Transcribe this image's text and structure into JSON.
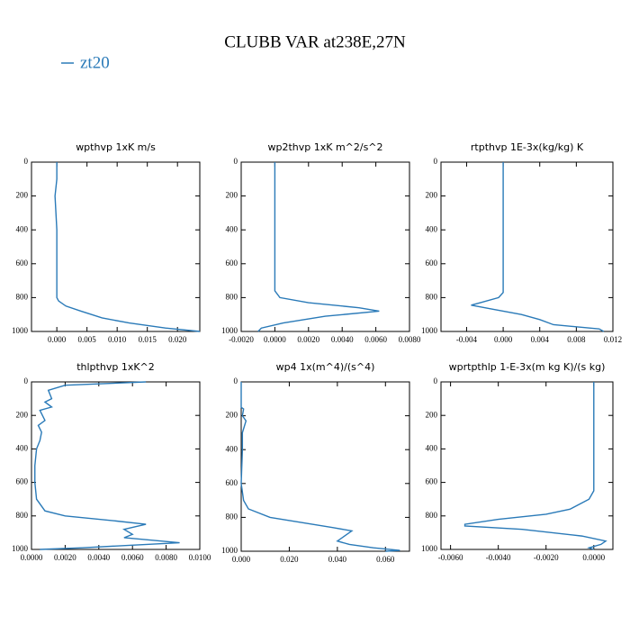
{
  "title": "CLUBB VAR at238E,27N",
  "legend": {
    "name": "zt20",
    "color": "#2a7ab8"
  },
  "chart_data": [
    {
      "type": "line",
      "title": "wpthvp   1xK m/s",
      "y": [
        0,
        100,
        200,
        400,
        600,
        800,
        820,
        850,
        880,
        920,
        950,
        980,
        1000
      ],
      "series": [
        {
          "color": "#2a7ab8",
          "values": [
            0.0,
            0.0,
            -0.0003,
            0.0,
            0.0,
            0.0,
            0.0003,
            0.0015,
            0.004,
            0.0075,
            0.012,
            0.018,
            0.0237
          ]
        }
      ],
      "xlim": [
        -0.0042,
        0.0237
      ],
      "ylim": [
        0,
        1000
      ],
      "xticks": [
        {
          "value": 0,
          "label": "0.000"
        },
        0.005,
        {
          "value": 0.01,
          "label": "0.010"
        },
        0.015,
        {
          "value": 0.02,
          "label": "0.020"
        }
      ],
      "yticks": [
        0,
        200,
        400,
        600,
        800,
        1000
      ]
    },
    {
      "type": "line",
      "title": "wp2thvp   1xK m^2/s^2",
      "y": [
        0,
        400,
        760,
        800,
        830,
        860,
        880,
        910,
        950,
        980,
        1000
      ],
      "series": [
        {
          "color": "#2a7ab8",
          "values": [
            0.0,
            0.0,
            0.0,
            0.0003,
            0.002,
            0.005,
            0.0062,
            0.003,
            0.0005,
            -0.0008,
            -0.001
          ]
        }
      ],
      "xlim": [
        -0.002,
        0.008
      ],
      "ylim": [
        0,
        1000
      ],
      "xticks": [
        {
          "value": -0.002,
          "label": "-0.0020"
        },
        {
          "value": 0,
          "label": "0.0000"
        },
        {
          "value": 0.002,
          "label": "0.0020"
        },
        {
          "value": 0.004,
          "label": "0.0040"
        },
        {
          "value": 0.006,
          "label": "0.0060"
        },
        {
          "value": 0.008,
          "label": "0.0080"
        }
      ],
      "yticks": [
        0,
        200,
        400,
        600,
        800,
        1000
      ]
    },
    {
      "type": "line",
      "title": "rtpthvp   1E-3x(kg/kg) K",
      "y": [
        0,
        400,
        770,
        800,
        830,
        845,
        870,
        900,
        930,
        960,
        985,
        1000
      ],
      "series": [
        {
          "color": "#2a7ab8",
          "values": [
            0.0,
            0.0,
            0.0,
            -0.0005,
            -0.0025,
            -0.0035,
            -0.001,
            0.002,
            0.004,
            0.0055,
            0.0105,
            0.011
          ]
        }
      ],
      "xlim": [
        -0.0068,
        0.012
      ],
      "ylim": [
        0,
        1000
      ],
      "xticks": [
        {
          "value": -0.004,
          "label": "-0.004"
        },
        {
          "value": 0,
          "label": "0.000"
        },
        0.004,
        0.008,
        0.012
      ],
      "yticks": [
        0,
        200,
        400,
        600,
        800,
        1000
      ]
    },
    {
      "type": "line",
      "title": "thlpthvp   1xK^2",
      "y": [
        0,
        20,
        50,
        100,
        120,
        150,
        170,
        230,
        260,
        300,
        350,
        400,
        500,
        600,
        700,
        770,
        800,
        830,
        850,
        880,
        910,
        930,
        960,
        990,
        1000
      ],
      "series": [
        {
          "color": "#2a7ab8",
          "values": [
            0.0068,
            0.002,
            0.001,
            0.0012,
            0.0008,
            0.0012,
            0.0005,
            0.0008,
            0.0004,
            0.0006,
            0.0005,
            0.0003,
            0.0002,
            0.0002,
            0.0003,
            0.0008,
            0.002,
            0.005,
            0.0068,
            0.0055,
            0.006,
            0.0055,
            0.0088,
            0.003,
            0.0005
          ]
        }
      ],
      "xlim": [
        0,
        0.01
      ],
      "ylim": [
        0,
        1000
      ],
      "xticks": [
        {
          "value": 0,
          "label": "0.0000"
        },
        {
          "value": 0.002,
          "label": "0.0020"
        },
        {
          "value": 0.004,
          "label": "0.0040"
        },
        {
          "value": 0.006,
          "label": "0.0060"
        },
        {
          "value": 0.008,
          "label": "0.0080"
        },
        {
          "value": 0.01,
          "label": "0.0100"
        }
      ],
      "yticks": [
        0,
        200,
        400,
        600,
        800,
        1000
      ]
    },
    {
      "type": "line",
      "title": "wp4   1x(m^4)/(s^4)",
      "y": [
        0,
        150,
        160,
        200,
        230,
        300,
        400,
        600,
        700,
        750,
        800,
        830,
        860,
        880,
        910,
        940,
        960,
        980,
        995,
        1000
      ],
      "series": [
        {
          "color": "#2a7ab8",
          "values": [
            0.0,
            0.0,
            0.001,
            0.0005,
            0.002,
            0.0005,
            0.0005,
            0.0,
            0.001,
            0.003,
            0.012,
            0.025,
            0.038,
            0.046,
            0.043,
            0.04,
            0.045,
            0.055,
            0.066,
            0.06
          ]
        }
      ],
      "xlim": [
        0,
        0.07
      ],
      "ylim": [
        0,
        1000
      ],
      "xticks": [
        {
          "value": 0,
          "label": "0.000"
        },
        {
          "value": 0.02,
          "label": "0.020"
        },
        {
          "value": 0.04,
          "label": "0.040"
        },
        {
          "value": 0.06,
          "label": "0.060"
        }
      ],
      "yticks": [
        0,
        200,
        400,
        600,
        800,
        1000
      ]
    },
    {
      "type": "line",
      "title": "wprtpthlp   1-E-3x(m kg K)/(s kg)",
      "y": [
        0,
        650,
        700,
        760,
        790,
        820,
        850,
        860,
        880,
        920,
        950,
        970,
        990,
        1000
      ],
      "series": [
        {
          "color": "#2a7ab8",
          "values": [
            0.0,
            0.0,
            -0.0002,
            -0.001,
            -0.002,
            -0.004,
            -0.0054,
            -0.0054,
            -0.003,
            -0.0005,
            0.0005,
            0.0003,
            -0.0002,
            0.0
          ]
        }
      ],
      "xlim": [
        -0.0064,
        0.0008
      ],
      "ylim": [
        0,
        1000
      ],
      "xticks": [
        {
          "value": -0.006,
          "label": "-0.0060"
        },
        {
          "value": -0.004,
          "label": "-0.0040"
        },
        {
          "value": -0.002,
          "label": "-0.0020"
        },
        {
          "value": 0,
          "label": "0.0000"
        }
      ],
      "yticks": [
        0,
        200,
        400,
        600,
        800,
        1000
      ]
    }
  ]
}
